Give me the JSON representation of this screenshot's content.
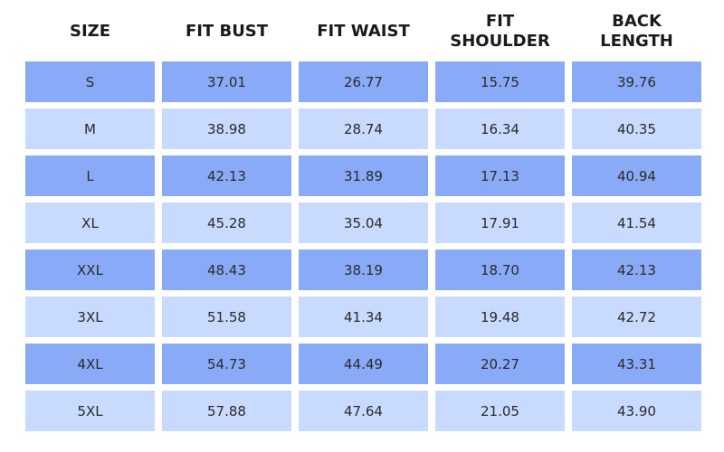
{
  "table": {
    "header": [
      "SIZE",
      "FIT BUST",
      "FIT WAIST",
      "FIT SHOULDER",
      "BACK LENGTH"
    ],
    "rows": [
      [
        "S",
        "37.01",
        "26.77",
        "15.75",
        "39.76"
      ],
      [
        "M",
        "38.98",
        "28.74",
        "16.34",
        "40.35"
      ],
      [
        "L",
        "42.13",
        "31.89",
        "17.13",
        "40.94"
      ],
      [
        "XL",
        "45.28",
        "35.04",
        "17.91",
        "41.54"
      ],
      [
        "XXL",
        "48.43",
        "38.19",
        "18.70",
        "42.13"
      ],
      [
        "3XL",
        "51.58",
        "41.34",
        "19.48",
        "42.72"
      ],
      [
        "4XL",
        "54.73",
        "44.49",
        "20.27",
        "43.31"
      ],
      [
        "5XL",
        "57.88",
        "47.64",
        "21.05",
        "43.90"
      ]
    ]
  }
}
